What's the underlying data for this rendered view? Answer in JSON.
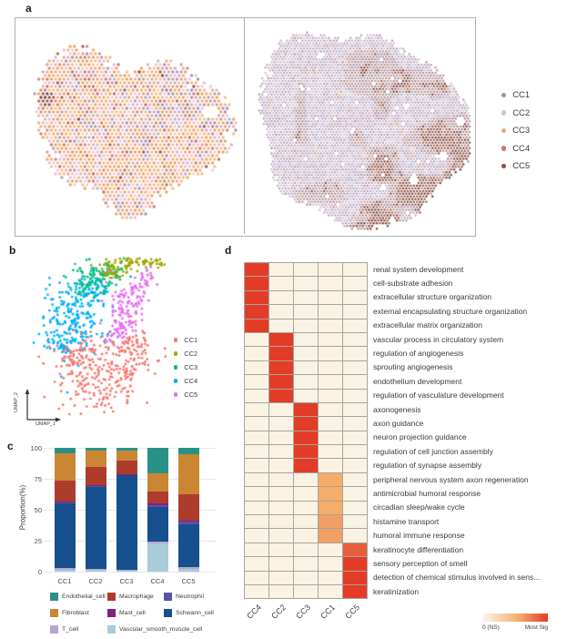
{
  "figure": {
    "panel_a_label": "a",
    "panel_b_label": "b",
    "panel_c_label": "c",
    "panel_d_label": "d"
  },
  "chart_data": [
    {
      "id": "panel_a_spatial",
      "type": "scatter",
      "subtype": "spatial_spot_maps",
      "description": "Two spatial transcriptomics hex-spot maps of tissue sections, spots colored by cluster; left section dominated by CC3/CC2 spots with a dark CC5 patch at the left edge, right section dominated by CC1 spots with CC5/CC4 regions toward the bottom right",
      "legend_position": "right",
      "clusters": [
        {
          "label": "CC1",
          "color": "#a492ab"
        },
        {
          "label": "CC2",
          "color": "#dcbccd"
        },
        {
          "label": "CC3",
          "color": "#efa975"
        },
        {
          "label": "CC4",
          "color": "#c97a6c"
        },
        {
          "label": "CC5",
          "color": "#8a4b43"
        }
      ]
    },
    {
      "id": "panel_b_umap",
      "type": "scatter",
      "subtype": "umap",
      "xlabel": "UMAP_1",
      "ylabel": "UMAP_2",
      "description": "UMAP embedding of spots colored by cluster: CC1 salmon lower lobe, CC2 olive top ridge, CC3 green upper-middle, CC4 blue left-middle, CC5 magenta right-middle",
      "legend_position": "right",
      "clusters": [
        {
          "label": "CC1",
          "color": "#F8766D"
        },
        {
          "label": "CC2",
          "color": "#A3A500"
        },
        {
          "label": "CC3",
          "color": "#00BF7D"
        },
        {
          "label": "CC4",
          "color": "#00B0F6"
        },
        {
          "label": "CC5",
          "color": "#E76BF3"
        }
      ]
    },
    {
      "id": "panel_c_bars",
      "type": "bar",
      "stacked": true,
      "title": "",
      "xlabel": "",
      "ylabel": "Proportion(%)",
      "ylim": [
        0,
        100
      ],
      "yticks": [
        0,
        25,
        50,
        75,
        100
      ],
      "categories": [
        "CC1",
        "CC2",
        "CC3",
        "CC4",
        "CC5"
      ],
      "series": [
        {
          "name": "Vascular_smooth_muscle_cell",
          "color": "#a9ccd8",
          "values": [
            1.5,
            1.5,
            1,
            23,
            2
          ]
        },
        {
          "name": "T_cell",
          "color": "#b6a6cf",
          "values": [
            1.2,
            0.8,
            0.5,
            1.5,
            1.5
          ]
        },
        {
          "name": "Schwann_cell",
          "color": "#16508e",
          "values": [
            52.8,
            66.7,
            76.8,
            27.5,
            35
          ]
        },
        {
          "name": "Neutrophil",
          "color": "#5a54a6",
          "values": [
            1,
            0.5,
            0.5,
            1.5,
            2
          ]
        },
        {
          "name": "Mast_cell",
          "color": "#832181",
          "values": [
            0.3,
            0.3,
            0.2,
            1.5,
            1
          ]
        },
        {
          "name": "Macrophage",
          "color": "#ae3c2c",
          "values": [
            17,
            14.7,
            11,
            10,
            21
          ]
        },
        {
          "name": "Fibroblast",
          "color": "#cb8633",
          "values": [
            21.7,
            13,
            8,
            14.5,
            32
          ]
        },
        {
          "name": "Endothelial_cell",
          "color": "#2a9187",
          "values": [
            4.5,
            2.5,
            2,
            20.5,
            5.5
          ]
        }
      ],
      "legend_rows": [
        [
          "Endothelial_cell",
          "Macrophage",
          "Neutrophil"
        ],
        [
          "Fibroblast",
          "Mast_cell",
          "Schwann_cell"
        ],
        [
          "T_cell",
          "Vascular_smooth_muscle_cell"
        ]
      ]
    },
    {
      "id": "panel_d_heatmap",
      "type": "heatmap",
      "columns": [
        "CC4",
        "CC2",
        "CC3",
        "CC1",
        "CC5"
      ],
      "rows": [
        "renal system development",
        "cell-substrate adhesion",
        "extracellular structure organization",
        "external encapsulating structure organization",
        "extracellular matrix organization",
        "vascular process in circulatory system",
        "regulation of angiogenesis",
        "sprouting angiogenesis",
        "endothelium development",
        "regulation of vasculature development",
        "axonogenesis",
        "axon guidance",
        "neuron projection guidance",
        "regulation of cell junction assembly",
        "regulation of synapse assembly",
        "peripheral nervous system axon regeneration",
        "antimicrobial humoral response",
        "circadian sleep/wake cycle",
        "histamine transport",
        "humoral immune response",
        "keratinocyte differentiation",
        "sensory perception of smell",
        "detection of chemical stimulus involved in sens...",
        "keratinization"
      ],
      "values": [
        [
          1,
          0,
          0,
          0,
          0
        ],
        [
          1,
          0,
          0,
          0,
          0
        ],
        [
          1,
          0,
          0,
          0,
          0
        ],
        [
          1,
          0,
          0,
          0,
          0
        ],
        [
          1,
          0,
          0,
          0,
          0
        ],
        [
          0,
          1,
          0,
          0,
          0
        ],
        [
          0,
          1,
          0,
          0,
          0
        ],
        [
          0,
          1,
          0,
          0,
          0
        ],
        [
          0,
          1,
          0,
          0,
          0
        ],
        [
          0,
          1,
          0,
          0,
          0
        ],
        [
          0,
          0,
          1,
          0,
          0
        ],
        [
          0,
          0,
          1,
          0,
          0
        ],
        [
          0,
          0,
          1,
          0,
          0
        ],
        [
          0,
          0,
          1,
          0,
          0
        ],
        [
          0,
          0,
          1,
          0,
          0
        ],
        [
          0,
          0,
          0,
          0.5,
          0
        ],
        [
          0,
          0,
          0,
          0.5,
          0
        ],
        [
          0,
          0,
          0,
          0.5,
          0
        ],
        [
          0,
          0,
          0,
          0.56,
          0
        ],
        [
          0,
          0,
          0,
          0.56,
          0
        ],
        [
          0,
          0,
          0,
          0,
          0.85
        ],
        [
          0,
          0,
          0,
          0,
          1
        ],
        [
          0,
          0,
          0,
          0,
          1
        ],
        [
          0,
          0,
          0,
          0,
          1
        ]
      ],
      "cell_bg": "#faf3e4",
      "grid_color": "#a6a49c",
      "colorbar": {
        "min_label": "0 (NS)",
        "max_label": "Most Sig",
        "colors": [
          "#fdf7ec",
          "#f4ad6b",
          "#e23c27"
        ]
      }
    }
  ]
}
